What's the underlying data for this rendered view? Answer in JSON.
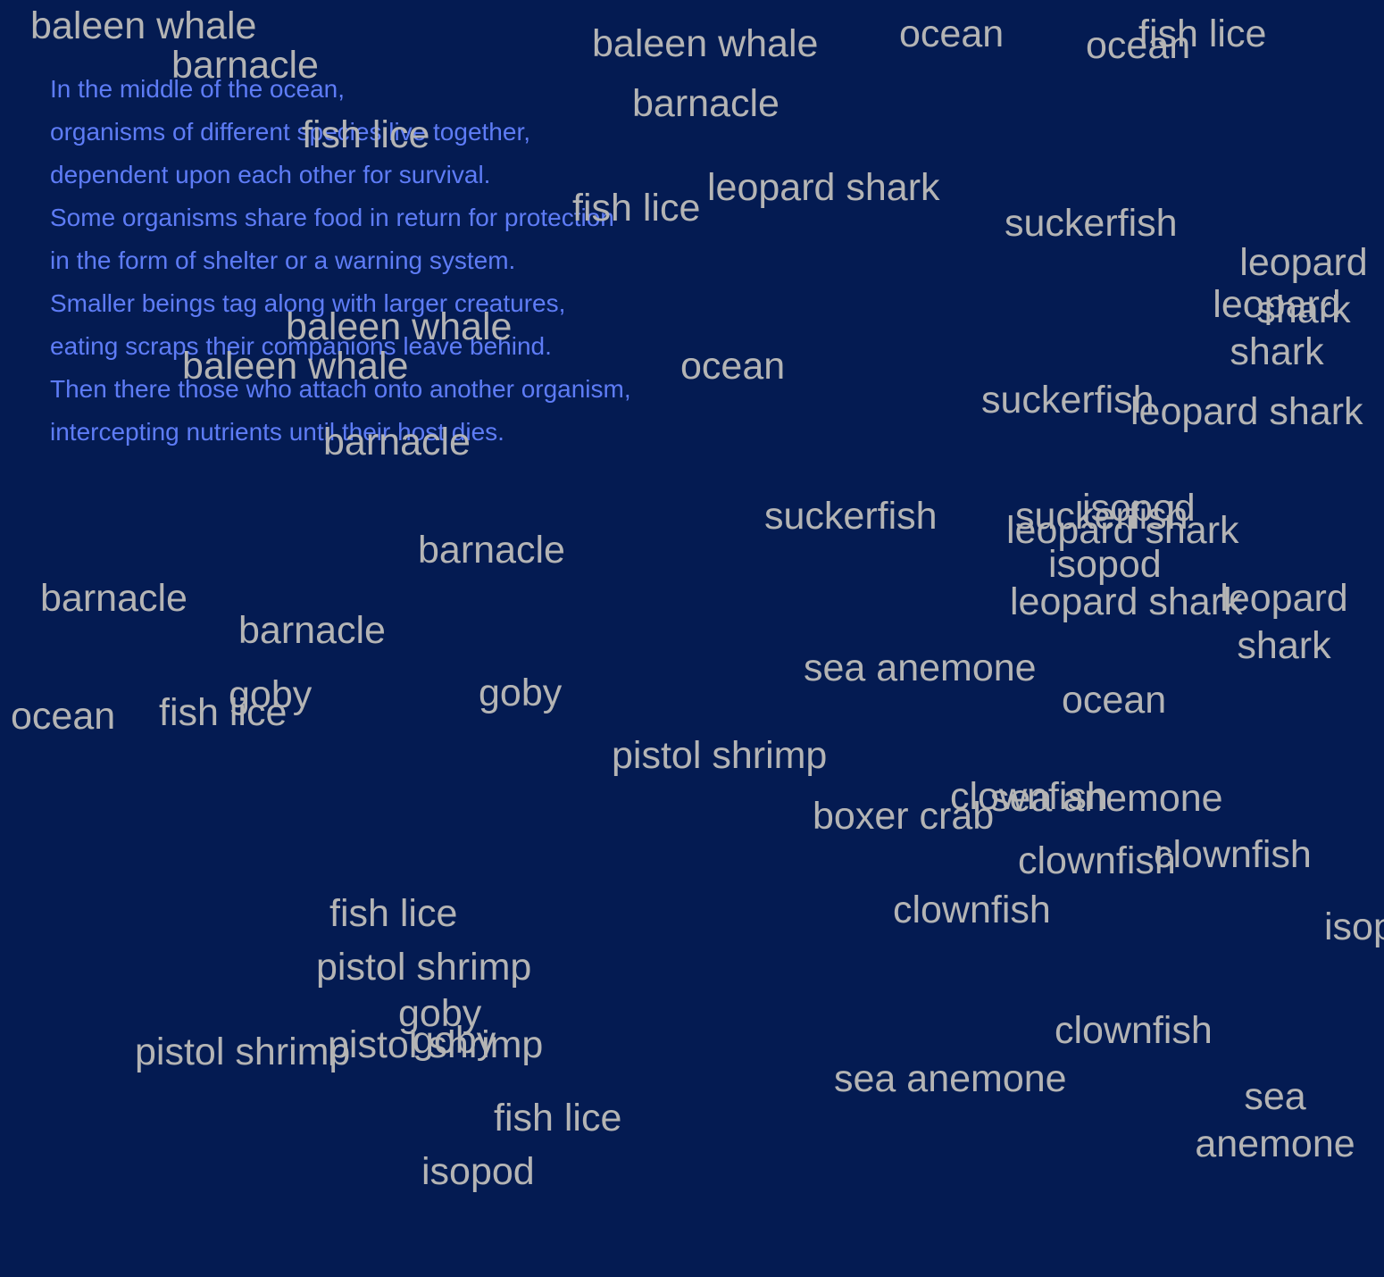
{
  "poem": {
    "lines": [
      "In the middle of the ocean,",
      "organisms of different species live together,",
      "dependent upon each other for survival.",
      "Some organisms share food in return for protection",
      "in the form of shelter or a warning system.",
      "Smaller beings tag along with larger creatures,",
      "eating scraps their companions leave behind.",
      "Then there those who attach onto another organism,",
      "intercepting nutrients until their host dies."
    ]
  },
  "words": {
    "w01": "baleen whale",
    "w02": "barnacle",
    "w03": "baleen whale",
    "w04": "ocean",
    "w05": "fish lice",
    "w06": "ocean",
    "w07": "barnacle",
    "w08": "fish lice",
    "w09": "fish lice",
    "w10": "leopard shark",
    "w11": "suckerfish",
    "w12": "leopard shark",
    "w13": "leopard shark",
    "w14": "baleen whale",
    "w15": "baleen whale",
    "w16": "ocean",
    "w17": "suckerfish",
    "w18": "leopard shark",
    "w19": "barnacle",
    "w20": "suckerfish",
    "w21": "suckerfish",
    "w22": "isopod",
    "w23": "leopard shark",
    "w24": "isopod",
    "w25": "barnacle",
    "w26": "barnacle",
    "w27": "leopard shark",
    "w28": "leopard shark",
    "w29": "barnacle",
    "w30": "sea anemone",
    "w31": "goby",
    "w32": "ocean",
    "w33": "fish lice",
    "w34": "goby",
    "w35": "ocean",
    "w36": "pistol shrimp",
    "w37": "clownfish",
    "w38": "sea anemone",
    "w39": "boxer crab",
    "w40": "clownfish",
    "w41": "clownfish",
    "w42": "clownfish",
    "w43": "fish lice",
    "w44": "isopod",
    "w45": "pistol shrimp",
    "w46": "goby",
    "w47": "pistol shrimp",
    "w48": "goby",
    "w49": "pistol shrimp",
    "w50": "clownfish",
    "w51": "sea anemone",
    "w52": "sea anemone",
    "w53": "fish lice",
    "w54": "isopod"
  }
}
